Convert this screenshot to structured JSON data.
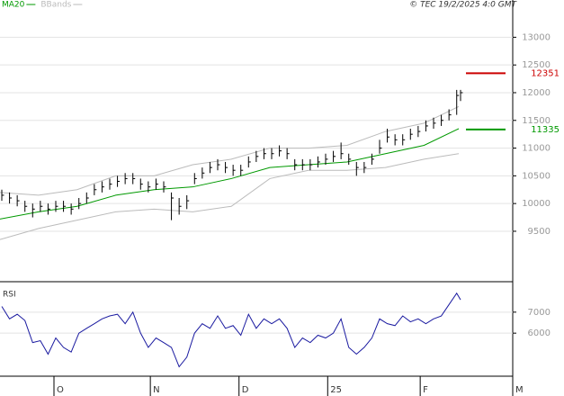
{
  "chart_data": [
    {
      "type": "ohlc",
      "copyright": "© TEC 19/2/2025 4:0 GMT",
      "color": "#000000",
      "x": [
        0,
        2,
        4,
        6,
        8,
        10,
        12,
        14,
        16,
        18,
        20,
        22,
        24,
        26,
        28,
        30,
        32,
        34,
        36,
        38,
        40,
        42,
        44,
        46,
        48,
        50,
        52,
        54,
        56,
        58,
        60,
        62,
        64,
        66,
        68,
        70,
        72,
        74,
        76,
        78,
        80,
        82,
        84,
        86,
        88,
        90,
        92,
        94,
        96,
        98,
        100,
        102,
        104,
        106,
        108,
        110,
        112,
        114,
        116,
        118,
        119
      ],
      "high": [
        10250,
        10200,
        10150,
        10050,
        10000,
        10050,
        10000,
        10050,
        10050,
        10000,
        10100,
        10200,
        10350,
        10400,
        10450,
        10500,
        10550,
        10550,
        10450,
        10400,
        10450,
        10400,
        10200,
        10100,
        10150,
        10550,
        10650,
        10750,
        10800,
        10750,
        10700,
        10700,
        10850,
        10950,
        11000,
        11000,
        11050,
        11000,
        10800,
        10800,
        10800,
        10850,
        10900,
        10950,
        11100,
        10900,
        10750,
        10750,
        10900,
        11150,
        11350,
        11250,
        11250,
        11350,
        11400,
        11500,
        11550,
        11600,
        11700,
        12050,
        12050
      ],
      "low": [
        10050,
        10000,
        9950,
        9850,
        9750,
        9850,
        9800,
        9850,
        9850,
        9800,
        9900,
        10000,
        10150,
        10200,
        10250,
        10300,
        10350,
        10350,
        10250,
        10200,
        10250,
        10200,
        9700,
        9800,
        9900,
        10350,
        10450,
        10550,
        10600,
        10550,
        10500,
        10500,
        10650,
        10750,
        10800,
        10800,
        10850,
        10800,
        10600,
        10600,
        10600,
        10650,
        10700,
        10750,
        10800,
        10700,
        10500,
        10550,
        10700,
        10900,
        11100,
        11050,
        11050,
        11150,
        11200,
        11300,
        11350,
        11400,
        11500,
        11600,
        11850
      ],
      "close": [
        10150,
        10100,
        10050,
        9950,
        9900,
        9950,
        9900,
        9950,
        9950,
        9900,
        10000,
        10100,
        10250,
        10300,
        10350,
        10400,
        10450,
        10450,
        10350,
        10300,
        10350,
        10300,
        10100,
        9950,
        10050,
        10450,
        10550,
        10650,
        10700,
        10650,
        10600,
        10600,
        10750,
        10850,
        10900,
        10900,
        10950,
        10900,
        10700,
        10700,
        10700,
        10750,
        10800,
        10850,
        10900,
        10800,
        10650,
        10650,
        10800,
        11000,
        11200,
        11150,
        11150,
        11250,
        11300,
        11400,
        11450,
        11500,
        11600,
        11950,
        12000
      ],
      "overlays": {
        "x": [
          0,
          10,
          20,
          30,
          40,
          50,
          60,
          70,
          80,
          90,
          100,
          110,
          119
        ],
        "series": [
          {
            "name": "MA20",
            "color": "#009900",
            "values": [
              9720,
              9850,
              9950,
              10150,
              10250,
              10300,
              10450,
              10650,
              10700,
              10750,
              10900,
              11050,
              11350
            ]
          },
          {
            "name": "BBands",
            "color": "#bbbbbb",
            "upper": [
              10200,
              10150,
              10250,
              10500,
              10500,
              10700,
              10800,
              11000,
              11000,
              11050,
              11300,
              11450,
              11750
            ],
            "lower": [
              9350,
              9550,
              9700,
              9850,
              9900,
              9850,
              9950,
              10450,
              10600,
              10600,
              10650,
              10800,
              10900
            ]
          }
        ]
      },
      "markers": [
        {
          "value": 12351,
          "color": "#cc0000"
        },
        {
          "value": 11335,
          "color": "#009900"
        }
      ],
      "xlim": [
        0,
        133
      ],
      "xticks": [
        {
          "value": 14,
          "label": "O"
        },
        {
          "value": 39,
          "label": "N"
        },
        {
          "value": 62,
          "label": "D"
        },
        {
          "value": 85,
          "label": "25"
        },
        {
          "value": 109,
          "label": "F"
        },
        {
          "value": 133,
          "label": "M"
        }
      ],
      "ylim": [
        8590,
        13672
      ],
      "yticks": [
        9500,
        10000,
        10500,
        11000,
        11500,
        12000,
        12500,
        13000
      ],
      "grid": true
    },
    {
      "type": "line",
      "title": "RSI",
      "color": "#1a1aa0",
      "x": [
        0,
        2,
        4,
        6,
        8,
        10,
        12,
        14,
        16,
        18,
        20,
        22,
        24,
        26,
        28,
        30,
        32,
        34,
        36,
        38,
        40,
        42,
        44,
        46,
        48,
        50,
        52,
        54,
        56,
        58,
        60,
        62,
        64,
        66,
        68,
        70,
        72,
        74,
        76,
        78,
        80,
        82,
        84,
        86,
        88,
        90,
        92,
        94,
        96,
        98,
        100,
        102,
        104,
        106,
        108,
        110,
        112,
        114,
        116,
        118,
        119
      ],
      "values": [
        72.7,
        66.8,
        69,
        66,
        55.5,
        56.4,
        50,
        57.7,
        53.2,
        51,
        60,
        62.3,
        64.5,
        66.8,
        68.2,
        69,
        64.5,
        70,
        60,
        53.2,
        57.7,
        55.5,
        53.2,
        44,
        48.6,
        60,
        64.5,
        62.3,
        68.2,
        62.3,
        63.6,
        59,
        69,
        62.3,
        66.8,
        64.5,
        66.8,
        62.3,
        53.2,
        57.7,
        55.5,
        59,
        57.7,
        60,
        66.8,
        53.2,
        50,
        53.2,
        57.7,
        66.8,
        64.5,
        63.6,
        68.2,
        65.4,
        66.8,
        64.5,
        66.8,
        68.2,
        73.6,
        79,
        75.9
      ],
      "xlim": [
        0,
        133
      ],
      "ylim": [
        39.5,
        84.5
      ],
      "yticks": [
        {
          "value": 60,
          "label": "6000"
        },
        {
          "value": 70,
          "label": "7000"
        }
      ],
      "grid": true
    }
  ]
}
